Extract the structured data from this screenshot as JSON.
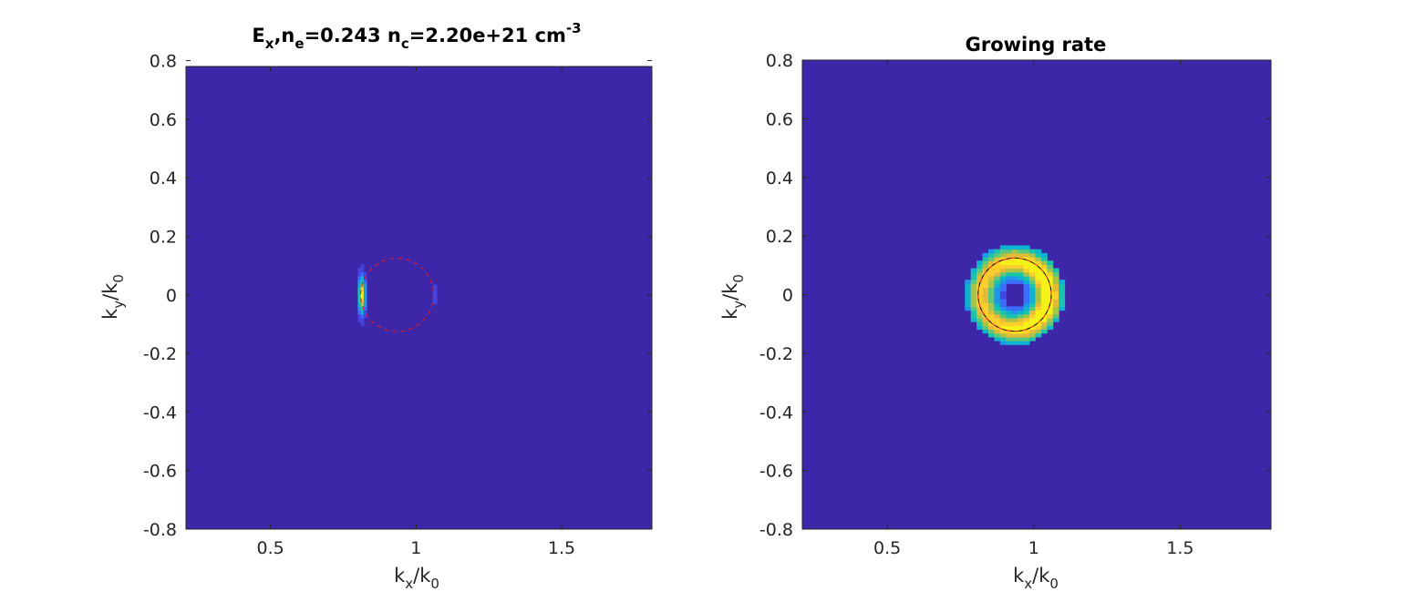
{
  "colors": {
    "background_field": "#3d26a8",
    "colormap": [
      "#3d26a8",
      "#4443e0",
      "#3a6dfc",
      "#1f96e9",
      "#0db3cf",
      "#1ac4ac",
      "#5cc879",
      "#a8c348",
      "#e5ba3a",
      "#fdcf2c",
      "#f5f219"
    ],
    "circle": "#e41a1c",
    "circle_inner": "#000000"
  },
  "chart_data": [
    {
      "type": "heatmap",
      "title": {
        "p1": "E",
        "s1": "x",
        "p2": ",n",
        "s2": "e",
        "p3": "=0.243 n",
        "s3": "c",
        "p4": "=2.20e+21 cm",
        "s4": "-3"
      },
      "xlabel": {
        "main": "k",
        "sub": "x",
        "mid": "/k",
        "sub2": "0"
      },
      "ylabel": {
        "main": "k",
        "sub": "y",
        "mid": "/k",
        "sub2": "0"
      },
      "xlim": [
        0.21,
        1.81
      ],
      "ylim": [
        -0.8,
        0.78
      ],
      "xticks": [
        0.5,
        1,
        1.5
      ],
      "xtick_labels": [
        "0.5",
        "1",
        "1.5"
      ],
      "yticks": [
        -0.8,
        -0.6,
        -0.4,
        -0.2,
        0,
        0.2,
        0.4,
        0.6,
        0.8
      ],
      "ytick_labels": [
        "-0.8",
        "-0.6",
        "-0.4",
        "-0.2",
        "0",
        "0.2",
        "0.4",
        "0.6",
        "0.8"
      ],
      "grid": false,
      "circle": {
        "cx": 0.935,
        "cy": 0,
        "r": 0.125,
        "style": "dashed"
      },
      "field": {
        "kind": "strip",
        "strip_x": 0.815,
        "strip_width": 0.03,
        "y_half_extent": 0.13,
        "dim_strip_x": 1.065,
        "dim_strip_width": 0.015,
        "dim_y_half_extent": 0.03
      }
    },
    {
      "type": "heatmap",
      "title": {
        "text": "Growing rate"
      },
      "xlabel": {
        "main": "k",
        "sub": "x",
        "mid": "/k",
        "sub2": "0"
      },
      "ylabel": {
        "main": "k",
        "sub": "y",
        "mid": "/k",
        "sub2": "0"
      },
      "xlim": [
        0.21,
        1.81
      ],
      "ylim": [
        -0.8,
        0.8
      ],
      "xticks": [
        0.5,
        1,
        1.5
      ],
      "xtick_labels": [
        "0.5",
        "1",
        "1.5"
      ],
      "yticks": [
        -0.8,
        -0.6,
        -0.4,
        -0.2,
        0,
        0.2,
        0.4,
        0.6,
        0.8
      ],
      "ytick_labels": [
        "-0.8",
        "-0.6",
        "-0.4",
        "-0.2",
        "0",
        "0.2",
        "0.4",
        "0.6",
        "0.8"
      ],
      "grid": false,
      "circle": {
        "cx": 0.935,
        "cy": 0,
        "r": 0.125,
        "style": "dashed"
      },
      "field": {
        "kind": "ring",
        "cx": 0.935,
        "cy": 0,
        "ring_radius": 0.115,
        "ring_width": 0.05,
        "inner_hole": 0.04,
        "outer_limit": 0.17
      }
    }
  ]
}
